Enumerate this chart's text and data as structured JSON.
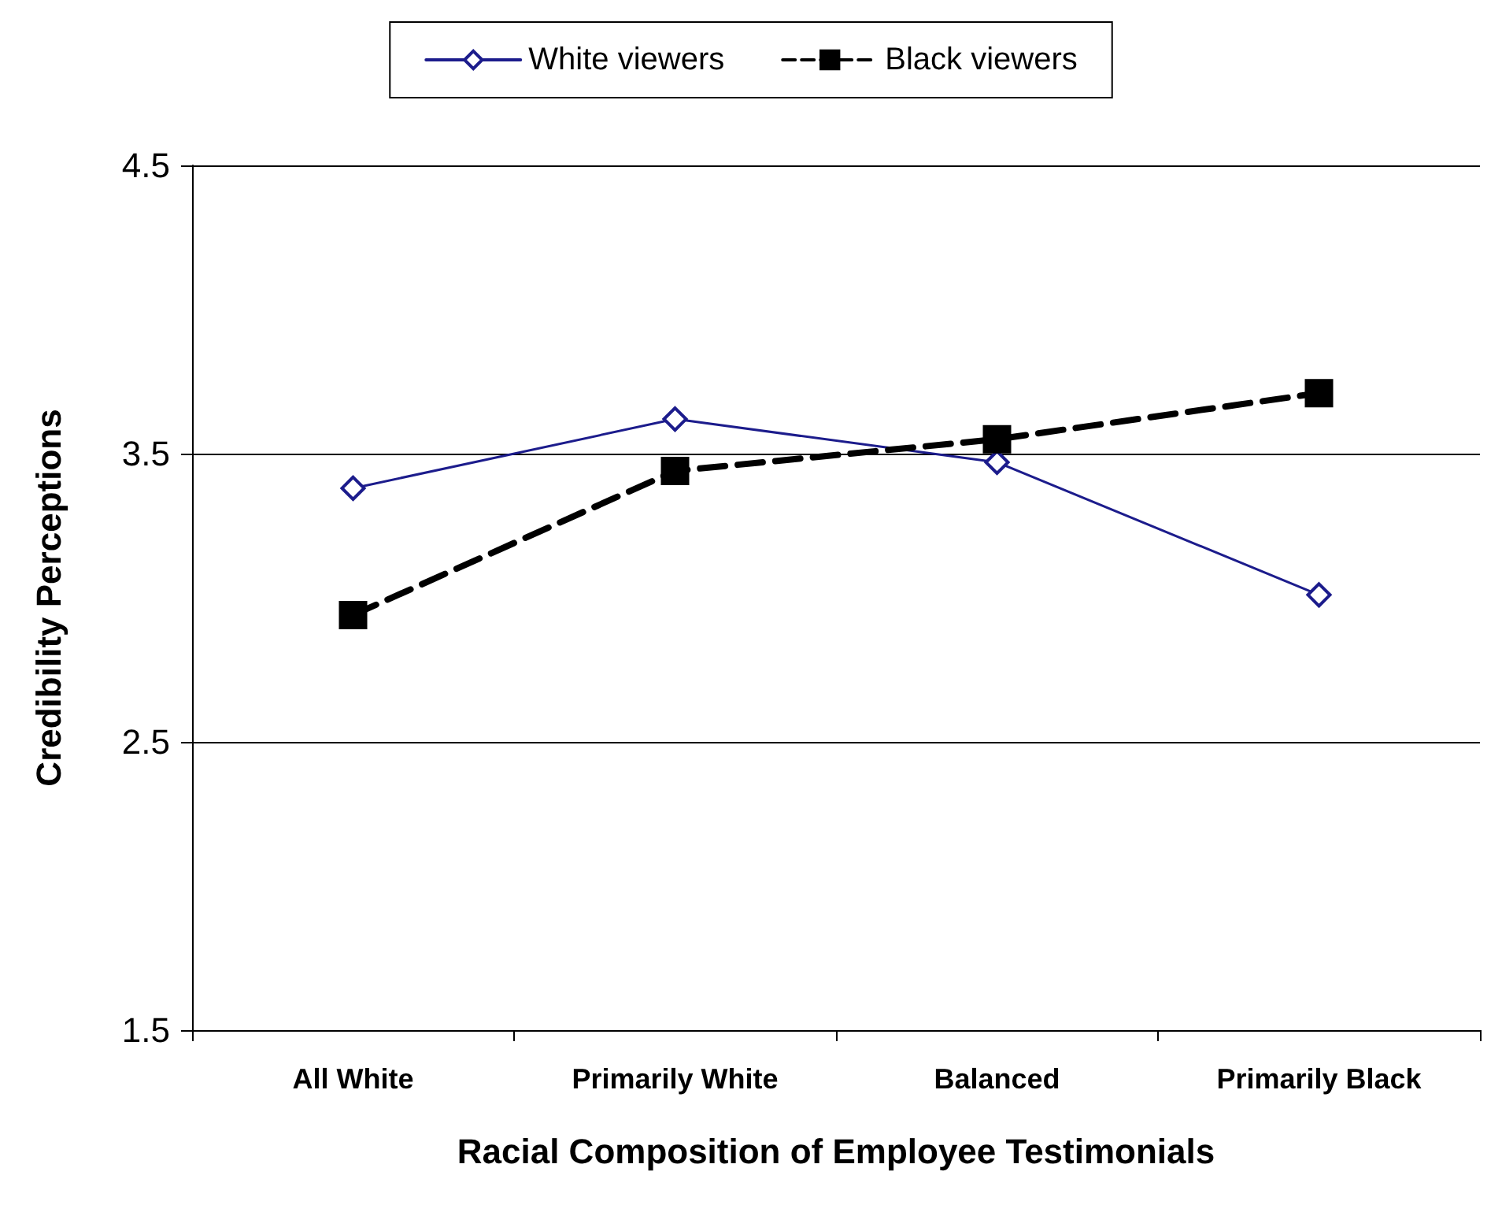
{
  "chart_data": {
    "type": "line",
    "xlabel": "Racial Composition of Employee Testimonials",
    "ylabel": "Credibility Perceptions",
    "categories": [
      "All White",
      "Primarily White",
      "Balanced",
      "Primarily Black"
    ],
    "series": [
      {
        "name": "White viewers",
        "color": "#1c1c8c",
        "marker": "diamond",
        "line_style": "solid",
        "values": [
          3.38,
          3.62,
          3.47,
          3.01
        ]
      },
      {
        "name": "Black viewers",
        "color": "#000000",
        "marker": "square",
        "line_style": "dashed",
        "values": [
          2.94,
          3.44,
          3.55,
          3.71
        ]
      }
    ],
    "ylim": [
      1.5,
      4.5
    ],
    "yticks": [
      1.5,
      2.5,
      3.5,
      4.5
    ],
    "grid": "y",
    "legend": "top"
  }
}
